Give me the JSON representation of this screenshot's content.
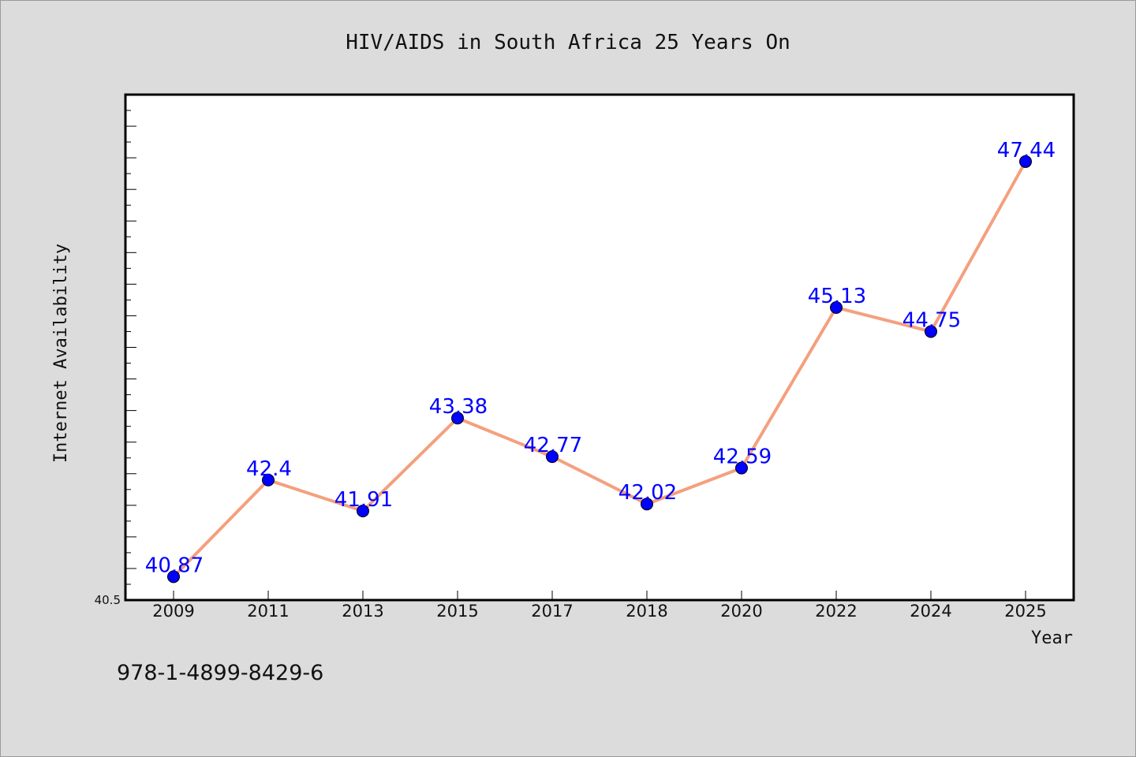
{
  "chart_data": {
    "type": "line",
    "title": "HIV/AIDS in South Africa 25 Years On",
    "xlabel": "Year",
    "ylabel": "Internet Availability",
    "categories": [
      "2009",
      "2011",
      "2013",
      "2015",
      "2017",
      "2018",
      "2020",
      "2022",
      "2024",
      "2025"
    ],
    "series": [
      {
        "values": [
          40.87,
          42.4,
          41.91,
          43.38,
          42.77,
          42.02,
          42.59,
          45.13,
          44.75,
          47.44
        ],
        "data_labels": [
          "40.87",
          "42.4",
          "41.91",
          "43.38",
          "42.77",
          "42.02",
          "42.59",
          "45.13",
          "44.75",
          "47.44"
        ]
      }
    ],
    "ylim": [
      40.5,
      48.5
    ],
    "y_min_label": "40.5",
    "grid": false,
    "legend": "none",
    "colors": {
      "line": "#f4a07e",
      "marker": "#0000ff",
      "data_label": "#0000ff",
      "plot_background": "#ffffff",
      "page_background": "#dcdcdc"
    }
  },
  "footer": {
    "isbn": "978-1-4899-8429-6"
  }
}
